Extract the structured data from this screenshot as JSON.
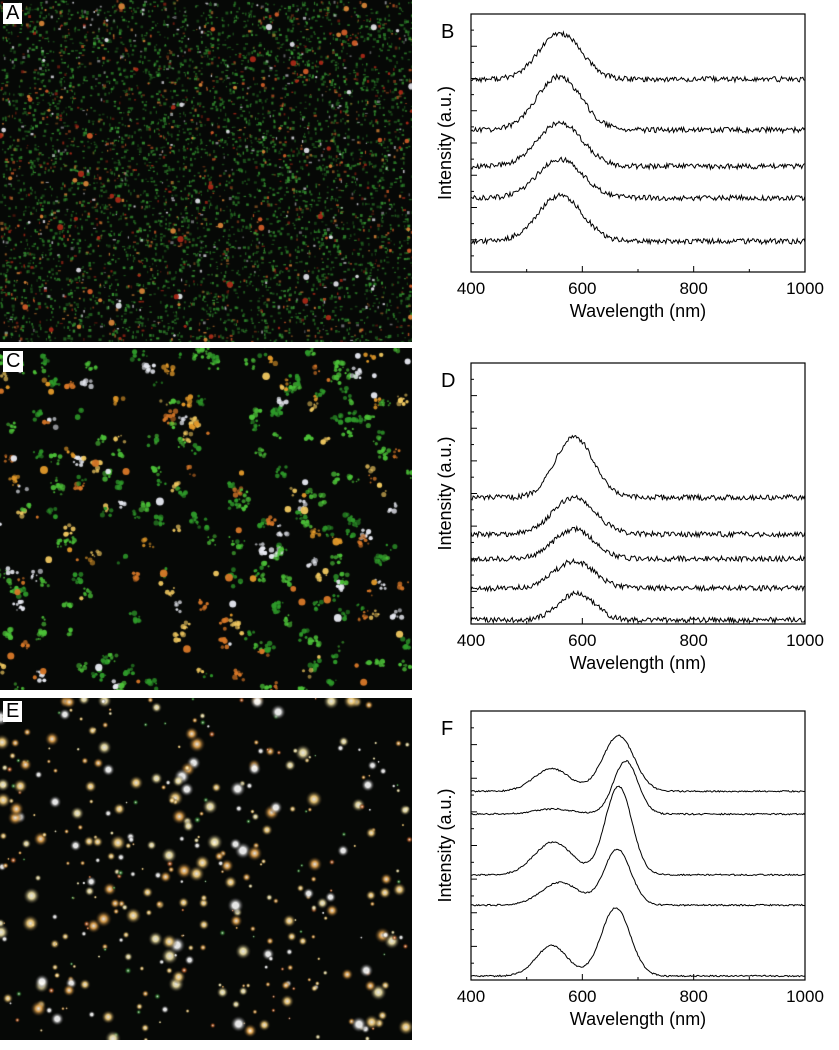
{
  "figure": {
    "panels": [
      {
        "letter": "A",
        "kind": "darkfield-image",
        "dot_palette": [
          "#2f8a2c",
          "#3fa83a",
          "#d9602a",
          "#e08a3a",
          "#e8e8f0",
          "#b02a18"
        ],
        "dot_style": "dense-speckle"
      },
      {
        "letter": "C",
        "kind": "darkfield-image",
        "dot_palette": [
          "#2e9a2a",
          "#4cc238",
          "#e39a2a",
          "#f0c860",
          "#e8eaf2",
          "#d87828"
        ],
        "dot_style": "clusters"
      },
      {
        "letter": "E",
        "kind": "darkfield-image",
        "dot_palette": [
          "#f4e6a8",
          "#f7d07a",
          "#ffffff",
          "#e8a850",
          "#3a8a38",
          "#c86a30"
        ],
        "dot_style": "round-spots"
      }
    ]
  },
  "chart_data": [
    {
      "panel": "B",
      "type": "line",
      "xlabel": "Wavelength (nm)",
      "ylabel": "Intensity (a.u.)",
      "xlim": [
        400,
        1000
      ],
      "xticks": [
        "400",
        "600",
        "800",
        "1000"
      ],
      "ylim": [
        0,
        10
      ],
      "series": [
        {
          "peaks": [
            {
              "center": 560,
              "width": 38,
              "height": 1.9
            }
          ],
          "baseline": 7.8
        },
        {
          "peaks": [
            {
              "center": 558,
              "width": 40,
              "height": 2.2
            }
          ],
          "baseline": 5.7
        },
        {
          "peaks": [
            {
              "center": 560,
              "width": 40,
              "height": 1.8
            }
          ],
          "baseline": 4.2
        },
        {
          "peaks": [
            {
              "center": 560,
              "width": 40,
              "height": 1.6
            }
          ],
          "baseline": 2.9
        },
        {
          "peaks": [
            {
              "center": 560,
              "width": 40,
              "height": 1.9
            }
          ],
          "baseline": 1.1
        }
      ]
    },
    {
      "panel": "D",
      "type": "line",
      "xlabel": "Wavelength (nm)",
      "ylabel": "Intensity (a.u.)",
      "xlim": [
        400,
        1000
      ],
      "xticks": [
        "400",
        "600",
        "800",
        "1000"
      ],
      "ylim": [
        0,
        10
      ],
      "series": [
        {
          "peaks": [
            {
              "center": 585,
              "width": 34,
              "height": 2.5
            }
          ],
          "baseline": 5.0
        },
        {
          "peaks": [
            {
              "center": 585,
              "width": 38,
              "height": 1.5
            }
          ],
          "baseline": 3.5
        },
        {
          "peaks": [
            {
              "center": 585,
              "width": 36,
              "height": 1.2
            }
          ],
          "baseline": 2.5
        },
        {
          "peaks": [
            {
              "center": 585,
              "width": 36,
              "height": 1.1
            }
          ],
          "baseline": 1.3
        },
        {
          "peaks": [
            {
              "center": 590,
              "width": 32,
              "height": 1.1
            }
          ],
          "baseline": 0.0
        }
      ]
    },
    {
      "panel": "F",
      "type": "line",
      "xlabel": "Wavelength (nm)",
      "ylabel": "Intensity (a.u.)",
      "xlim": [
        400,
        1000
      ],
      "xticks": [
        "400",
        "600",
        "800",
        "1000"
      ],
      "ylim": [
        0,
        10
      ],
      "series": [
        {
          "peaks": [
            {
              "center": 545,
              "width": 32,
              "height": 0.9
            },
            {
              "center": 665,
              "width": 28,
              "height": 2.2
            }
          ],
          "baseline": 7.3
        },
        {
          "peaks": [
            {
              "center": 548,
              "width": 34,
              "height": 0.2
            },
            {
              "center": 678,
              "width": 22,
              "height": 2.1
            }
          ],
          "baseline": 6.4
        },
        {
          "peaks": [
            {
              "center": 548,
              "width": 34,
              "height": 1.3
            },
            {
              "center": 665,
              "width": 24,
              "height": 3.5
            }
          ],
          "baseline": 4.0
        },
        {
          "peaks": [
            {
              "center": 560,
              "width": 34,
              "height": 0.9
            },
            {
              "center": 663,
              "width": 24,
              "height": 2.2
            }
          ],
          "baseline": 2.8
        },
        {
          "peaks": [
            {
              "center": 545,
              "width": 28,
              "height": 1.2
            },
            {
              "center": 660,
              "width": 26,
              "height": 2.7
            }
          ],
          "baseline": 0.0
        }
      ]
    }
  ]
}
